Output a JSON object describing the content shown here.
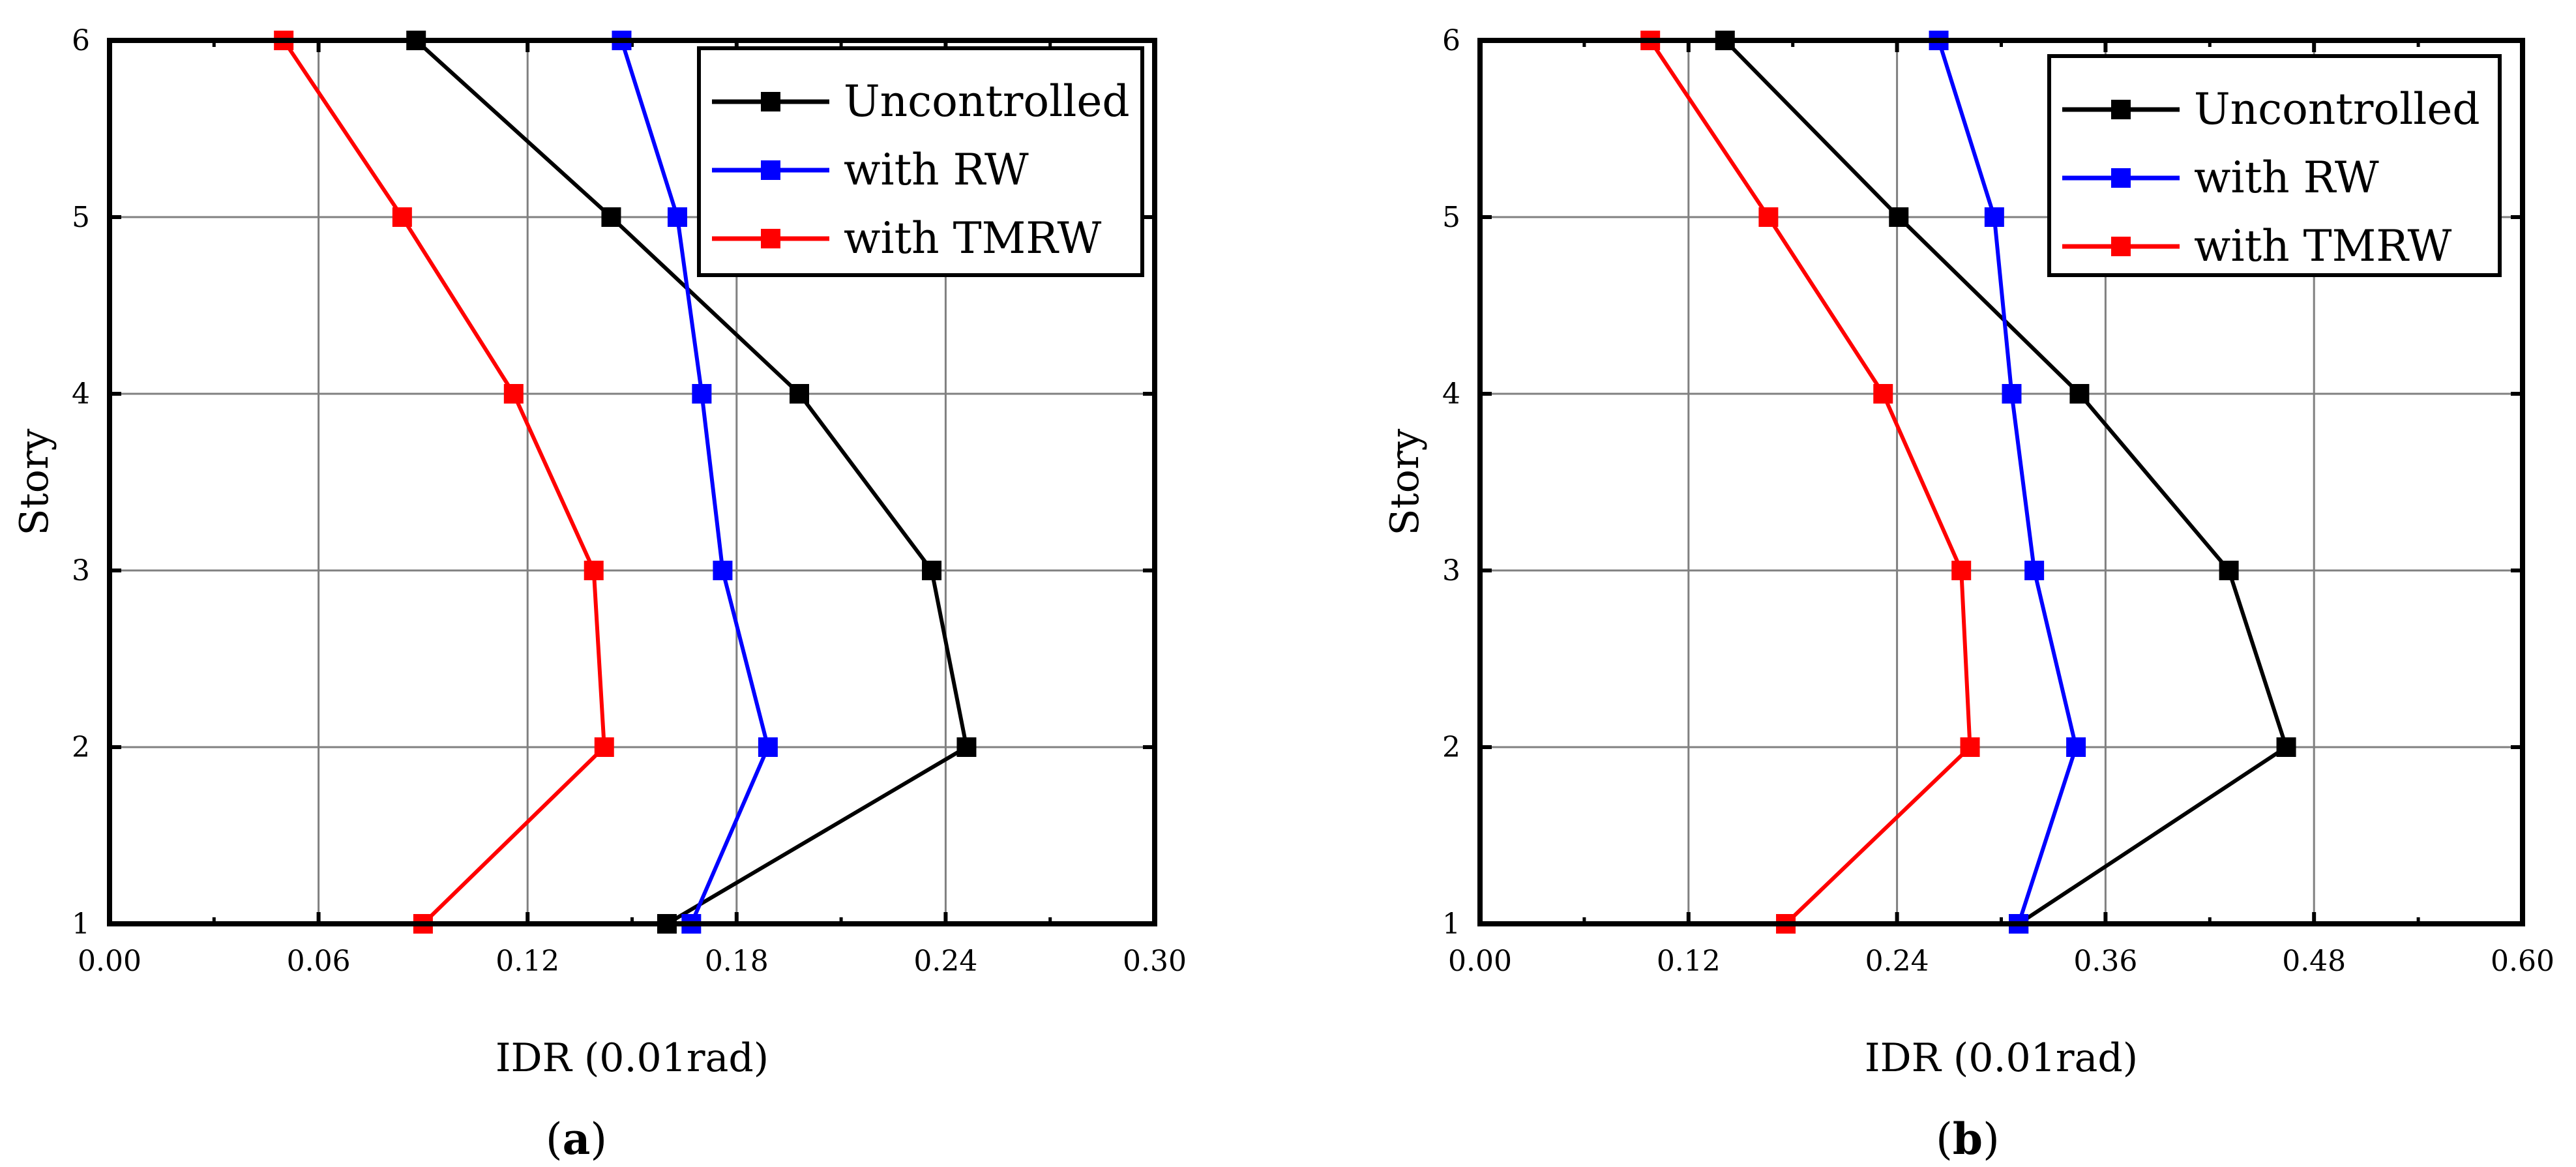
{
  "chart_data": [
    {
      "type": "line",
      "panel_label": "a",
      "title": "",
      "xlabel": "IDR (0.01rad)",
      "ylabel": "Story",
      "xlim": [
        0,
        0.3
      ],
      "ylim": [
        1,
        6
      ],
      "grid": true,
      "x_ticks": [
        0,
        0.06,
        0.12,
        0.18,
        0.24,
        0.3
      ],
      "x_tick_labels": [
        "0.00",
        "0.06",
        "0.12",
        "0.18",
        "0.24",
        "0.30"
      ],
      "y_ticks": [
        1,
        2,
        3,
        4,
        5,
        6
      ],
      "y_tick_labels": [
        "1",
        "2",
        "3",
        "4",
        "5",
        "6"
      ],
      "legend_position": "top-right",
      "categories": [
        1,
        2,
        3,
        4,
        5,
        6
      ],
      "series": [
        {
          "name": "Uncontrolled",
          "color": "#000000",
          "values": [
            0.16,
            0.246,
            0.236,
            0.198,
            0.144,
            0.088
          ]
        },
        {
          "name": "with RW",
          "color": "#0000ff",
          "values": [
            0.167,
            0.189,
            0.176,
            0.17,
            0.163,
            0.147
          ]
        },
        {
          "name": "with TMRW",
          "color": "#ff0000",
          "values": [
            0.09,
            0.142,
            0.139,
            0.116,
            0.084,
            0.05
          ]
        }
      ]
    },
    {
      "type": "line",
      "panel_label": "b",
      "title": "",
      "xlabel": "IDR (0.01rad)",
      "ylabel": "Story",
      "xlim": [
        0,
        0.6
      ],
      "ylim": [
        1,
        6
      ],
      "grid": true,
      "x_ticks": [
        0,
        0.12,
        0.24,
        0.36,
        0.48,
        0.6
      ],
      "x_tick_labels": [
        "0.00",
        "0.12",
        "0.24",
        "0.36",
        "0.48",
        "0.60"
      ],
      "y_ticks": [
        1,
        2,
        3,
        4,
        5,
        6
      ],
      "y_tick_labels": [
        "1",
        "2",
        "3",
        "4",
        "5",
        "6"
      ],
      "legend_position": "top-right",
      "categories": [
        1,
        2,
        3,
        4,
        5,
        6
      ],
      "series": [
        {
          "name": "Uncontrolled",
          "color": "#000000",
          "values": [
            0.31,
            0.464,
            0.431,
            0.345,
            0.241,
            0.141
          ]
        },
        {
          "name": "with RW",
          "color": "#0000ff",
          "values": [
            0.31,
            0.343,
            0.319,
            0.306,
            0.296,
            0.264
          ]
        },
        {
          "name": "with TMRW",
          "color": "#ff0000",
          "values": [
            0.176,
            0.282,
            0.277,
            0.232,
            0.166,
            0.098
          ]
        }
      ]
    }
  ]
}
